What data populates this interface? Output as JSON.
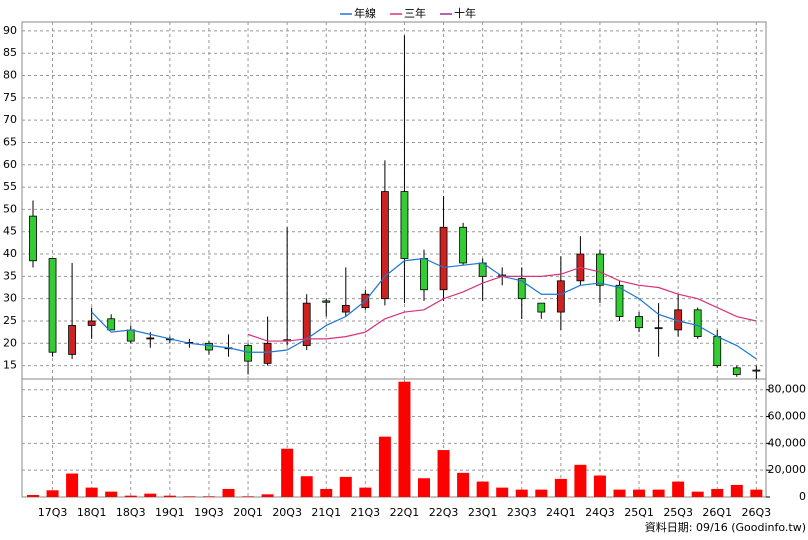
{
  "chart_data": {
    "type": "candlestick",
    "categories": [
      null,
      "17Q3",
      null,
      "18Q1",
      null,
      "18Q3",
      null,
      "19Q1",
      null,
      "19Q3",
      null,
      "20Q1",
      null,
      "20Q3",
      null,
      "21Q1",
      null,
      "21Q3",
      null,
      "22Q1",
      null,
      "22Q3",
      null,
      "23Q1",
      null,
      "23Q3",
      null,
      "24Q1",
      null,
      "24Q3",
      null,
      "25Q1",
      null,
      "25Q3",
      null,
      "26Q1",
      null,
      "26Q3"
    ],
    "open": [
      48.5,
      39,
      17.5,
      24,
      25.5,
      23,
      21,
      21,
      20,
      20,
      19,
      19.5,
      15.5,
      20.5,
      19.5,
      29.5,
      27,
      28,
      30,
      54,
      39,
      32,
      46,
      38,
      35,
      34.5,
      29,
      27,
      34,
      40,
      33,
      26,
      23.5,
      23,
      27.5,
      21.5,
      14.5,
      14
    ],
    "high": [
      52,
      39,
      38,
      28,
      26.5,
      24,
      22.5,
      21.5,
      21,
      20.5,
      22,
      20,
      26,
      46,
      31,
      30,
      37,
      32,
      61,
      89,
      41,
      53,
      47,
      39,
      37,
      37,
      29,
      39.5,
      44,
      41,
      34,
      27,
      29,
      31,
      28,
      23,
      15,
      15
    ],
    "low": [
      37,
      17,
      16.5,
      21,
      23,
      20,
      19,
      20,
      19,
      17.5,
      17,
      13,
      15,
      19.5,
      18.5,
      26,
      26,
      27.5,
      28.5,
      29,
      29.5,
      29.5,
      37.5,
      29.5,
      33,
      25.5,
      25.5,
      23,
      33,
      29,
      25,
      22.5,
      17,
      21.5,
      21,
      14.5,
      12.5,
      12
    ],
    "close": [
      38.5,
      18,
      24,
      25,
      23,
      20.5,
      21.2,
      20.8,
      20.2,
      18.5,
      18.8,
      16,
      20,
      20.8,
      29,
      29.2,
      28.5,
      31,
      54,
      39,
      32,
      46,
      38,
      35,
      35.3,
      30,
      27,
      34,
      40,
      33,
      26,
      23.5,
      23.3,
      27.5,
      21.5,
      15,
      13,
      13.8
    ],
    "up_color": "#cc2222",
    "down_color": "#33cc33",
    "series": [
      {
        "name": "年線",
        "color": "#1e78d2",
        "values": [
          null,
          null,
          null,
          27,
          22.5,
          23,
          22,
          21,
          20,
          19.5,
          19,
          18,
          18,
          18.5,
          21,
          24,
          26,
          29.5,
          35,
          38.5,
          39,
          37,
          37.5,
          38,
          35,
          34,
          31,
          31,
          33,
          33.5,
          32.5,
          30,
          26.5,
          25,
          24,
          21.5,
          19.5,
          16.5
        ]
      },
      {
        "name": "三年",
        "color": "#d6337a",
        "values": [
          null,
          null,
          null,
          null,
          null,
          null,
          null,
          null,
          null,
          null,
          null,
          22,
          20.5,
          20.5,
          21,
          21,
          21.5,
          22.5,
          25.5,
          27,
          27.5,
          30,
          31.5,
          33.5,
          35,
          35,
          35,
          35.5,
          37,
          36,
          34,
          33,
          32.5,
          31,
          30,
          28,
          26,
          25
        ]
      },
      {
        "name": "十年",
        "color": "#993399",
        "values": [
          null,
          null,
          null,
          null,
          null,
          null,
          null,
          null,
          null,
          null,
          null,
          null,
          null,
          null,
          null,
          null,
          null,
          null,
          null,
          null,
          null,
          null,
          null,
          null,
          null,
          null,
          null,
          null,
          null,
          null,
          null,
          null,
          null,
          null,
          null,
          null,
          null,
          null
        ]
      }
    ],
    "ylim": [
      12,
      92
    ],
    "yticks": [
      15,
      20,
      25,
      30,
      35,
      40,
      45,
      50,
      55,
      60,
      65,
      70,
      75,
      80,
      85,
      90
    ],
    "grid": true,
    "legend": "top",
    "volume": {
      "color": "#ff0000",
      "values": [
        1500,
        5000,
        17500,
        7000,
        4000,
        1000,
        2500,
        1000,
        500,
        500,
        6000,
        500,
        2000,
        36000,
        15500,
        6000,
        15000,
        7000,
        45000,
        86000,
        14000,
        35000,
        18000,
        11500,
        7000,
        5500,
        5500,
        13500,
        24000,
        16000,
        5500,
        5500,
        5500,
        11500,
        4000,
        6000,
        9000,
        5500
      ],
      "ylim": [
        0,
        88000
      ],
      "yticks": [
        0,
        {
          "value": 20000,
          "label": "20,000"
        },
        {
          "value": 40000,
          "label": "40,000"
        },
        {
          "value": 60000,
          "label": "60,000"
        },
        {
          "value": 80000,
          "label": "80,000"
        }
      ]
    },
    "footnote": "資料日期: 09/16 (Goodinfo.tw)"
  }
}
